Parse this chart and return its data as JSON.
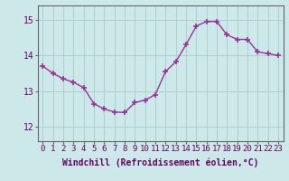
{
  "x": [
    0,
    1,
    2,
    3,
    4,
    5,
    6,
    7,
    8,
    9,
    10,
    11,
    12,
    13,
    14,
    15,
    16,
    17,
    18,
    19,
    20,
    21,
    22,
    23
  ],
  "y": [
    13.7,
    13.5,
    13.35,
    13.25,
    13.1,
    12.65,
    12.5,
    12.42,
    12.4,
    12.68,
    12.75,
    12.9,
    13.55,
    13.82,
    14.3,
    14.82,
    14.95,
    14.95,
    14.58,
    14.45,
    14.45,
    14.1,
    14.05,
    14.0
  ],
  "line_color": "#993399",
  "marker": "+",
  "marker_size": 4,
  "marker_lw": 1.2,
  "bg_color": "#cce8e8",
  "grid_color": "#aacccc",
  "xlabel": "Windchill (Refroidissement éolien,°C)",
  "xlabel_fontsize": 7,
  "ylabel_ticks": [
    12,
    13,
    14,
    15
  ],
  "xtick_labels": [
    "0",
    "1",
    "2",
    "3",
    "4",
    "5",
    "6",
    "7",
    "8",
    "9",
    "10",
    "11",
    "12",
    "13",
    "14",
    "15",
    "16",
    "17",
    "18",
    "19",
    "20",
    "21",
    "22",
    "23"
  ],
  "ylim": [
    11.6,
    15.4
  ],
  "xlim": [
    -0.5,
    23.5
  ],
  "tick_color": "#660066",
  "tick_fontsize": 6.5,
  "axis_color": "#666666",
  "line_width": 1.0
}
